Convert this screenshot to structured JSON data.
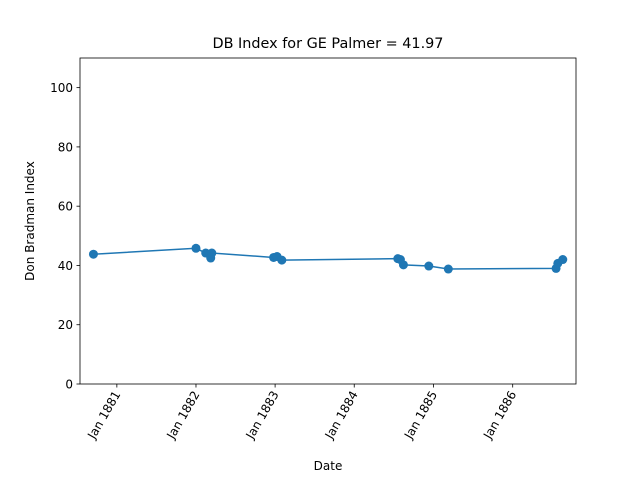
{
  "chart_data": {
    "type": "line",
    "title": "DB Index for GE Palmer = 41.97",
    "xlabel": "Date",
    "ylabel": "Don Bradman Index",
    "ylim": [
      0,
      110
    ],
    "xlim": [
      "1880-07-15",
      "1886-10-20"
    ],
    "y_ticks": [
      0,
      20,
      40,
      60,
      80,
      100
    ],
    "x_ticks": [
      {
        "date": "1881-01-01",
        "label": "Jan 1881"
      },
      {
        "date": "1882-01-01",
        "label": "Jan 1882"
      },
      {
        "date": "1883-01-01",
        "label": "Jan 1883"
      },
      {
        "date": "1884-01-01",
        "label": "Jan 1884"
      },
      {
        "date": "1885-01-01",
        "label": "Jan 1885"
      },
      {
        "date": "1886-01-01",
        "label": "Jan 1886"
      }
    ],
    "grid": false,
    "legend": "none",
    "colors": {
      "series": "#1f77b4"
    },
    "series": [
      {
        "x": [
          "1880-09-15",
          "1882-01-01",
          "1882-02-15",
          "1882-03-05",
          "1882-03-10",
          "1882-03-15",
          "1882-12-25",
          "1883-01-10",
          "1883-02-01",
          "1884-07-20",
          "1884-08-01",
          "1884-08-15",
          "1884-12-10",
          "1885-03-10",
          "1886-07-20",
          "1886-07-28",
          "1886-08-20"
        ],
        "y": [
          43.8,
          45.8,
          44.2,
          43.8,
          42.5,
          44.2,
          42.7,
          43.0,
          41.8,
          42.3,
          42.0,
          40.2,
          39.8,
          38.8,
          39.0,
          40.7,
          42.0
        ]
      }
    ]
  }
}
